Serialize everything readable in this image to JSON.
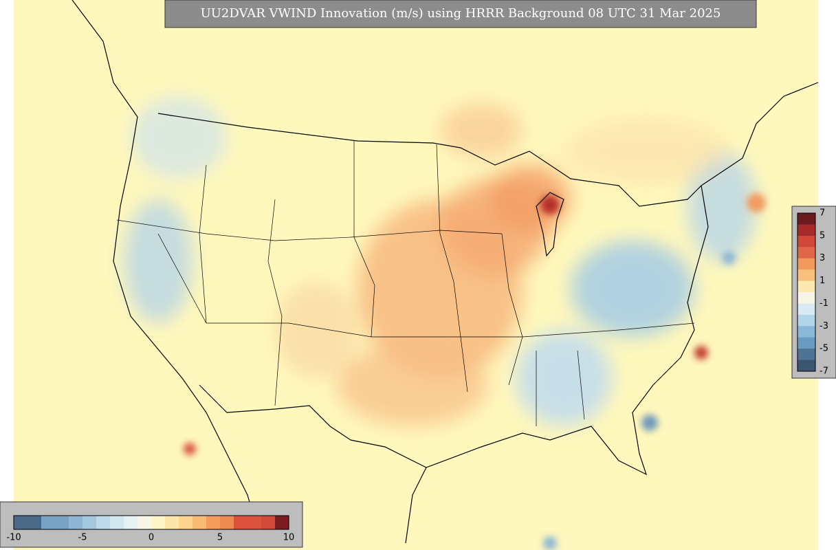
{
  "header": {
    "title": "UU2DVAR VWIND Innovation (m/s) using HRRR Background 08 UTC 31 Mar 2025"
  },
  "colorbar_right": {
    "ticks": [
      7,
      5,
      3,
      1,
      -1,
      -3,
      -5,
      -7
    ],
    "colors": [
      "#6b1a1f",
      "#a52a2a",
      "#d0483a",
      "#e0664a",
      "#f29a5e",
      "#f8c07a",
      "#fce8b0",
      "#f7f4e8",
      "#d8eaf2",
      "#b0d4e8",
      "#8ab8d8",
      "#6a9cc2",
      "#4f7394",
      "#3b5670"
    ]
  },
  "colorbar_bottom": {
    "ticks": [
      -10,
      -5,
      0,
      5,
      10
    ],
    "colors": [
      "#4b6a88",
      "#4b6a88",
      "#7aa2c4",
      "#7aa2c4",
      "#8fb5d4",
      "#a4c8e0",
      "#bcd9ea",
      "#d2e7f0",
      "#e6f1f3",
      "#f8f6e6",
      "#fdf4c8",
      "#fde7a8",
      "#fcd48c",
      "#f9bc74",
      "#f39c5c",
      "#ef8a50",
      "#dc513c",
      "#dc513c",
      "#d24a38",
      "#7b1c20"
    ]
  }
}
